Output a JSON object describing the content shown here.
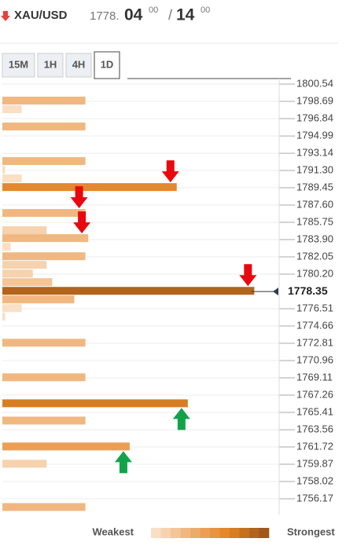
{
  "header": {
    "symbol": "XAU/USD",
    "price": "1778.",
    "bid": "04",
    "bid_sup": "00",
    "separator": "/",
    "ask": "14",
    "ask_sup": "00"
  },
  "tabs": {
    "items": [
      "15M",
      "1H",
      "4H",
      "1D"
    ],
    "active": "1D"
  },
  "chart_data": {
    "type": "confluence",
    "levels": [
      1798.77,
      1797.85,
      1796.0,
      1792.3,
      1791.37,
      1790.45,
      1789.52,
      1786.75,
      1784.9,
      1784.06,
      1783.13,
      1782.12,
      1781.2,
      1780.27,
      1779.35,
      1778.42,
      1777.5,
      1776.57,
      1775.65,
      1772.87,
      1769.17,
      1766.39,
      1764.54,
      1761.77,
      1759.92,
      1755.29
    ],
    "values": [
      30,
      7,
      30,
      30,
      1,
      7,
      63,
      30,
      16,
      31,
      3,
      30,
      16,
      11,
      18,
      91,
      26,
      7,
      1,
      30,
      30,
      67,
      30,
      46,
      16,
      30
    ],
    "arrows": [
      null,
      null,
      null,
      null,
      null,
      null,
      "down",
      "down",
      null,
      "down",
      null,
      null,
      null,
      null,
      null,
      "down",
      null,
      null,
      null,
      null,
      null,
      "up",
      null,
      "up",
      null,
      null
    ],
    "xlim": [
      0,
      100
    ],
    "ylim": [
      1754.49,
      1801.13
    ],
    "yticks": [
      1800.54,
      1798.69,
      1796.84,
      1794.99,
      1793.14,
      {
        "value": 1791.3,
        "label": "1791.30"
      },
      1789.45,
      {
        "value": 1787.6,
        "label": "1787.60"
      },
      1785.75,
      {
        "value": 1783.9,
        "label": "1783.90"
      },
      1782.05,
      {
        "value": 1780.2,
        "label": "1780.20"
      },
      1776.51,
      1774.66,
      1772.81,
      1770.96,
      1769.11,
      1767.26,
      1765.41,
      1763.56,
      1761.72,
      1759.87,
      1758.02,
      1756.17
    ],
    "current_price": 1778.35,
    "grid": true,
    "palette": [
      "#f9dfc4",
      "#f6d2ae",
      "#f3c597",
      "#f0b880",
      "#edab6a",
      "#eb9f55",
      "#e89340",
      "#e5872c",
      "#d87d22",
      "#c5701f",
      "#b2641d",
      "#9f581b"
    ],
    "legend": {
      "weak": "Weakest",
      "strong": "Strongest"
    }
  }
}
